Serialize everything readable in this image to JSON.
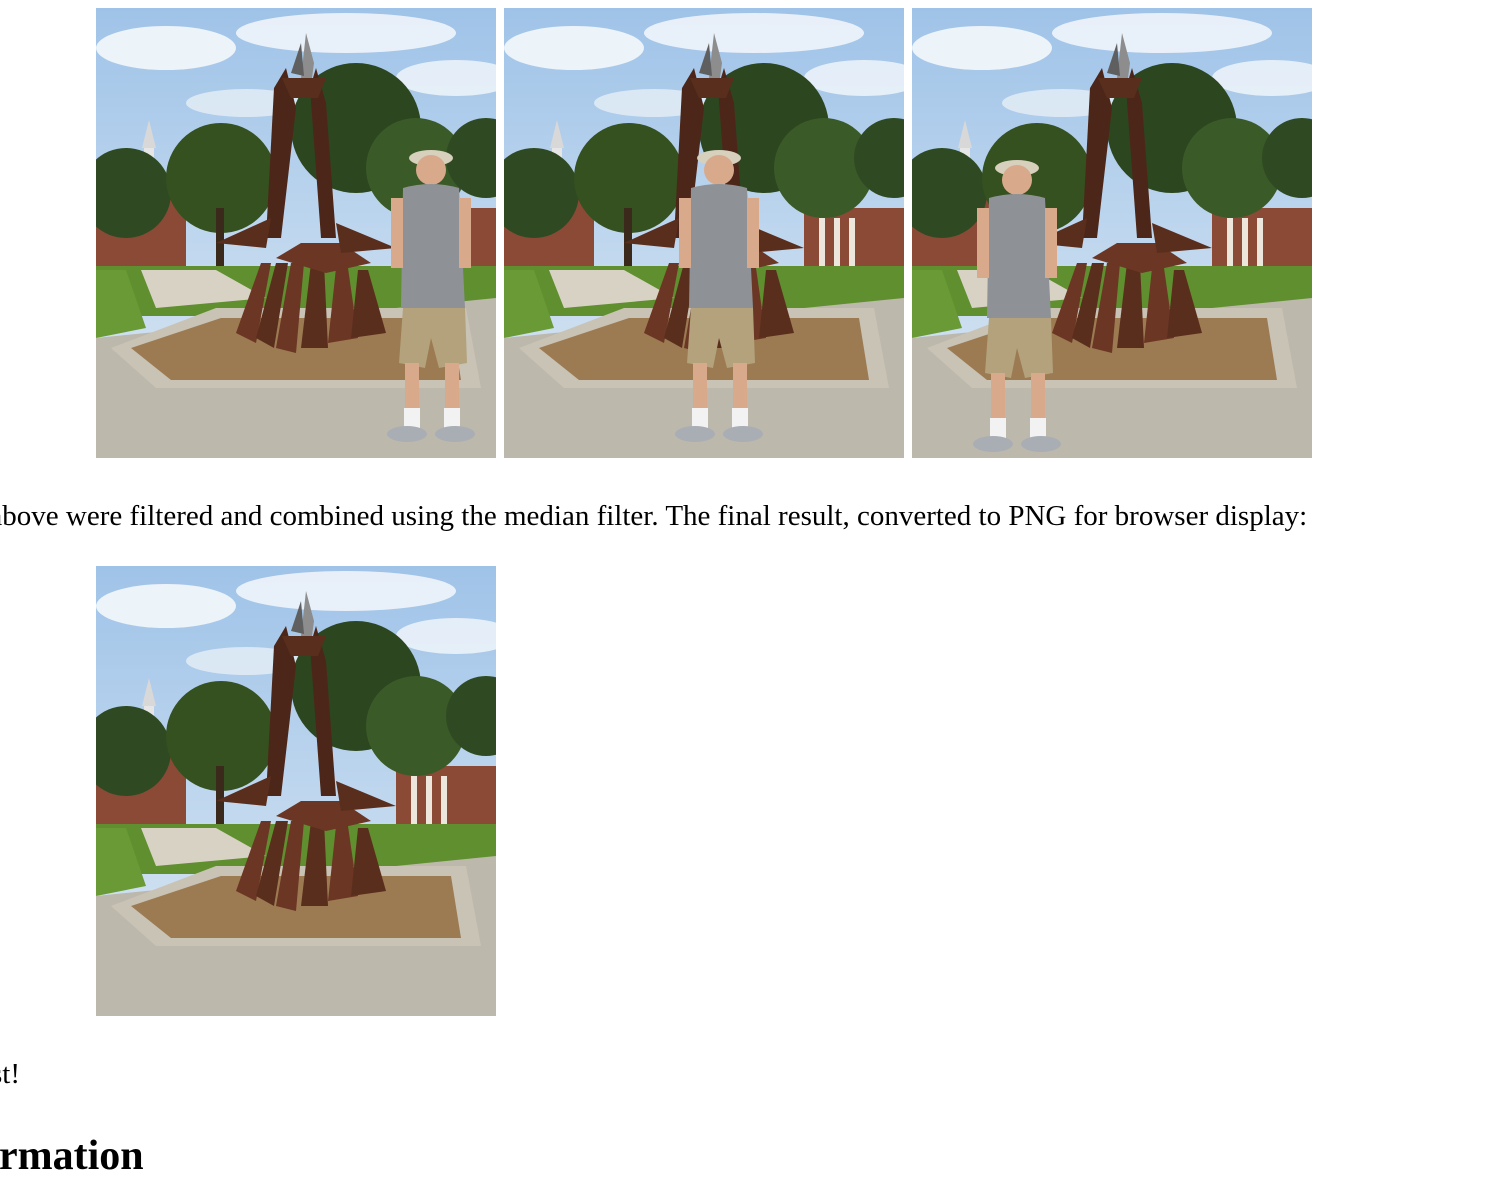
{
  "photos": {
    "frame_1": {
      "alt": "",
      "walker": "front"
    },
    "frame_2": {
      "alt": "",
      "walker": "middle"
    },
    "frame_3": {
      "alt": "",
      "walker": "back"
    },
    "result": {
      "alt": "",
      "walker": "none"
    }
  },
  "caption": "es above were filtered and combined using the median filter. The final result, converted to PNG for browser display:",
  "closing": "st!",
  "section_heading": "ormation",
  "colors": {
    "sky": "#b7d3ee",
    "cloud": "#f4f7fb",
    "foliage": "#2f4a22",
    "grass": "#5f8f2f",
    "pavement": "#bdb8ac",
    "sculpture": "#5a2e1c",
    "brick": "#8a4a35",
    "shirt": "#8e9296",
    "shorts": "#b3a27c",
    "skin": "#d9a98c"
  }
}
